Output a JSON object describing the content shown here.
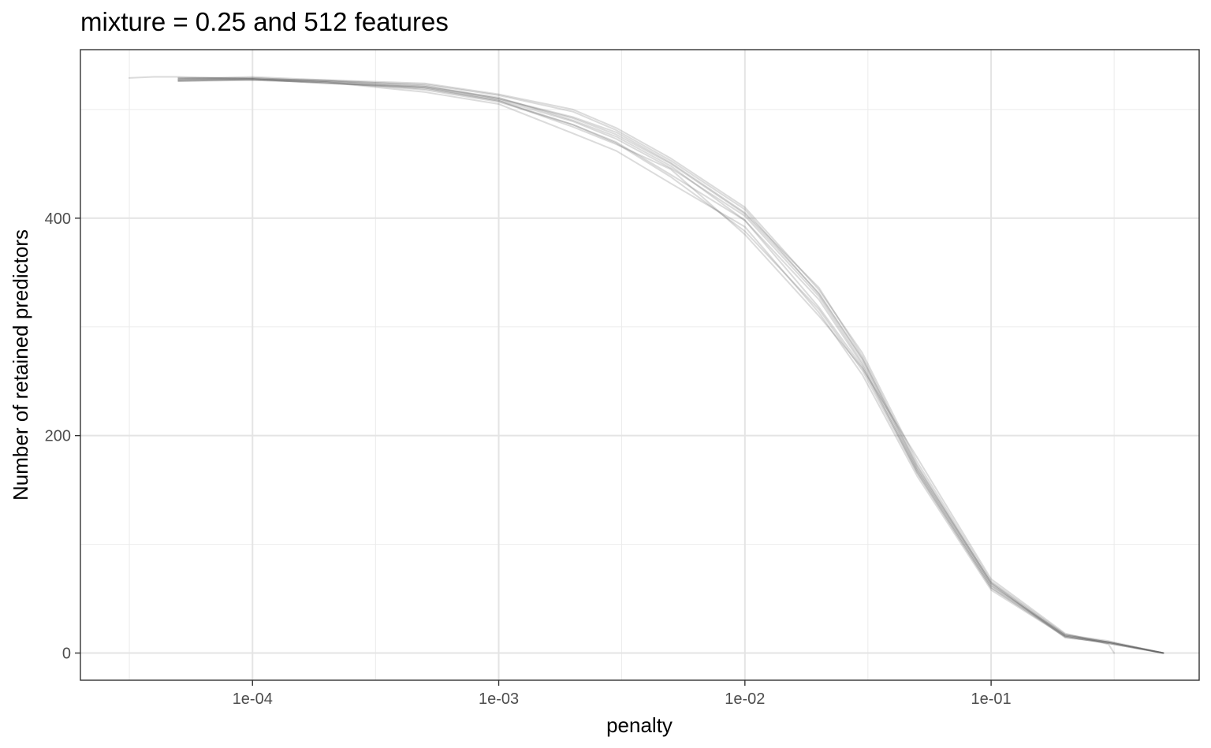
{
  "chart_data": {
    "type": "line",
    "title": "mixture =  0.25 and 512 features",
    "xlabel": "penalty",
    "ylabel": "Number of retained predictors",
    "x_scale": "log10",
    "xlim": [
      2e-05,
      0.7
    ],
    "ylim": [
      -25,
      555
    ],
    "x_ticks": [
      0.0001,
      0.001,
      0.01,
      0.1
    ],
    "x_tick_labels": [
      "1e-04",
      "1e-03",
      "1e-02",
      "1e-01"
    ],
    "x_minor_ticks": [
      3.16e-05,
      0.000316,
      0.00316,
      0.0316,
      0.316
    ],
    "y_ticks": [
      0,
      200,
      400
    ],
    "y_tick_labels": [
      "0",
      "200",
      "400"
    ],
    "y_minor_ticks": [
      100,
      300,
      500
    ],
    "grid": true,
    "legend": "none",
    "line_color": "#595959",
    "line_opacity": 0.22,
    "series": [
      {
        "x": [
          3.16e-05,
          3.98e-05,
          5e-05,
          0.0001,
          0.0002,
          0.0005,
          0.001,
          0.002,
          0.003,
          0.005,
          0.01,
          0.02,
          0.03,
          0.05,
          0.1,
          0.2,
          0.3,
          0.316
        ],
        "values": [
          529,
          530,
          530,
          528,
          526,
          520,
          508,
          484,
          468,
          445,
          385,
          310,
          262,
          180,
          68,
          18,
          8,
          0
        ]
      },
      {
        "x": [
          5e-05,
          0.0001,
          0.0002,
          0.0005,
          0.001,
          0.002,
          0.003,
          0.005,
          0.01,
          0.02,
          0.03,
          0.05,
          0.1,
          0.2,
          0.3,
          0.5
        ],
        "values": [
          527,
          528,
          524,
          521,
          511,
          490,
          475,
          448,
          398,
          318,
          263,
          168,
          62,
          17,
          10,
          0
        ]
      },
      {
        "x": [
          5e-05,
          0.0001,
          0.0002,
          0.0005,
          0.001,
          0.002,
          0.003,
          0.005,
          0.01,
          0.02,
          0.03,
          0.05,
          0.1,
          0.2,
          0.3,
          0.5
        ],
        "values": [
          526,
          527,
          525,
          516,
          505,
          478,
          462,
          432,
          392,
          313,
          256,
          163,
          58,
          15,
          9,
          0
        ]
      },
      {
        "x": [
          5e-05,
          0.0001,
          0.0002,
          0.0005,
          0.001,
          0.002,
          0.003,
          0.005,
          0.01,
          0.02,
          0.03,
          0.05,
          0.1,
          0.2,
          0.3,
          0.5
        ],
        "values": [
          528,
          529,
          526,
          523,
          513,
          498,
          481,
          453,
          408,
          330,
          270,
          170,
          65,
          16,
          10,
          0
        ]
      },
      {
        "x": [
          5e-05,
          0.0001,
          0.0002,
          0.0005,
          0.001,
          0.002,
          0.003,
          0.005,
          0.01,
          0.02,
          0.03,
          0.05,
          0.1,
          0.2,
          0.3,
          0.5
        ],
        "values": [
          529,
          528,
          527,
          522,
          510,
          493,
          479,
          451,
          405,
          336,
          273,
          173,
          64,
          14,
          10,
          0
        ]
      },
      {
        "x": [
          5e-05,
          0.0001,
          0.0002,
          0.0005,
          0.001,
          0.002,
          0.003,
          0.005,
          0.01,
          0.02,
          0.03,
          0.05,
          0.1,
          0.2,
          0.3,
          0.5
        ],
        "values": [
          527,
          527,
          525,
          518,
          507,
          486,
          470,
          440,
          398,
          325,
          265,
          166,
          60,
          15,
          9,
          0
        ]
      },
      {
        "x": [
          5e-05,
          0.0001,
          0.0002,
          0.0005,
          0.001,
          0.002,
          0.003,
          0.005,
          0.01,
          0.02,
          0.03,
          0.05,
          0.1,
          0.2,
          0.3,
          0.5
        ],
        "values": [
          528,
          530,
          527,
          524,
          514,
          500,
          483,
          455,
          410,
          334,
          276,
          176,
          66,
          17,
          11,
          0
        ]
      },
      {
        "x": [
          5e-05,
          0.0001,
          0.0002,
          0.0005,
          0.001,
          0.002,
          0.003,
          0.005,
          0.01,
          0.02,
          0.03,
          0.05,
          0.1,
          0.2,
          0.3,
          0.5
        ],
        "values": [
          526,
          528,
          524,
          520,
          509,
          489,
          473,
          446,
          402,
          328,
          267,
          169,
          62,
          16,
          10,
          0
        ]
      },
      {
        "x": [
          5e-05,
          0.0001,
          0.0002,
          0.0005,
          0.001,
          0.002,
          0.003,
          0.005,
          0.01,
          0.02,
          0.03,
          0.05,
          0.1,
          0.2,
          0.3,
          0.5
        ],
        "values": [
          529,
          529,
          526,
          521,
          510,
          492,
          477,
          450,
          404,
          331,
          271,
          172,
          64,
          15,
          9,
          0
        ]
      },
      {
        "x": [
          5e-05,
          0.0001,
          0.0002,
          0.0005,
          0.001,
          0.002,
          0.003,
          0.005,
          0.01,
          0.02,
          0.03,
          0.05,
          0.1,
          0.2,
          0.3,
          0.5
        ],
        "values": [
          527,
          528,
          525,
          519,
          508,
          486,
          469,
          438,
          388,
          316,
          260,
          166,
          60,
          16,
          10,
          0
        ]
      }
    ]
  }
}
